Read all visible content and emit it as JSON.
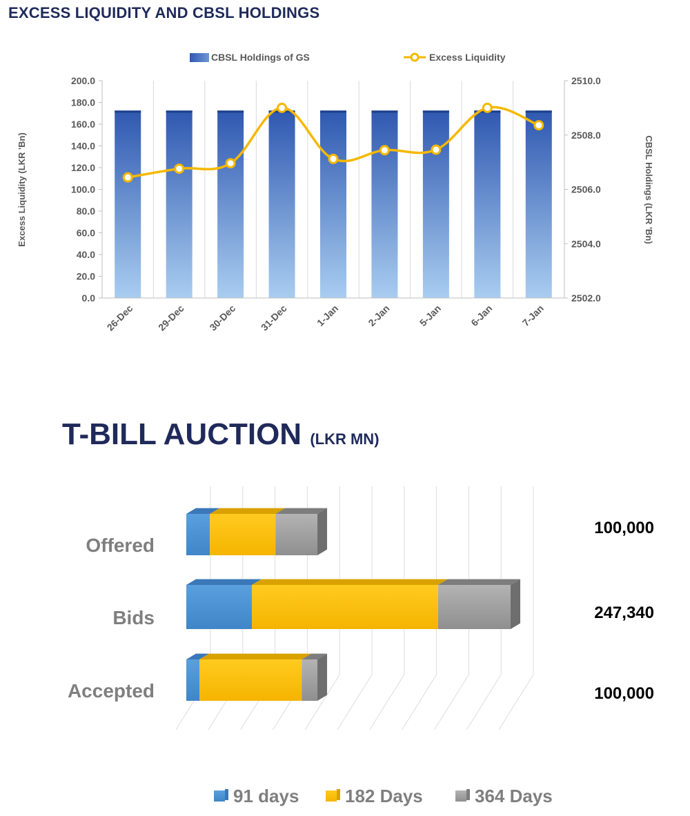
{
  "chart_data": [
    {
      "type": "bar",
      "title": "EXCESS LIQUIDITY AND CBSL HOLDINGS",
      "categories": [
        "26-Dec",
        "29-Dec",
        "30-Dec",
        "31-Dec",
        "1-Jan",
        "2-Jan",
        "5-Jan",
        "6-Jan",
        "7-Jan"
      ],
      "series": [
        {
          "name": "CBSL Holdings of GS",
          "type": "bar",
          "axis": "right",
          "values": [
            2508.9,
            2508.9,
            2508.9,
            2508.9,
            2508.9,
            2508.9,
            2508.9,
            2508.9,
            2508.9
          ]
        },
        {
          "name": "Excess Liquidity",
          "type": "line",
          "axis": "left",
          "values": [
            111.0,
            119.0,
            124.0,
            175.0,
            128.0,
            136.0,
            136.5,
            175.0,
            159.0
          ]
        }
      ],
      "ylabel": "Excess Liquidity (LKR 'Bn)",
      "y2label": "CBSL Holdings (LKR 'Bn)",
      "ylim": [
        0,
        200
      ],
      "y2lim": [
        2502,
        2510
      ],
      "yticks": [
        "200.0",
        "180.0",
        "160.0",
        "140.0",
        "120.0",
        "100.0",
        "80.0",
        "60.0",
        "40.0",
        "20.0",
        "0.0"
      ],
      "y2ticks": [
        "2510.0",
        "2508.0",
        "2506.0",
        "2504.0",
        "2502.0"
      ],
      "legend": "top-center",
      "colors": {
        "bar": "#3b63b5",
        "bar_light": "#a9cdf0",
        "line": "#f5b800"
      }
    },
    {
      "type": "bar",
      "orientation": "horizontal",
      "stacked": true,
      "title": "T-BILL AUCTION",
      "title_unit": "(LKR MN)",
      "categories": [
        "Offered",
        "Bids",
        "Accepted"
      ],
      "totals": [
        "100,000",
        "247,340",
        "100,000"
      ],
      "series": [
        {
          "name": "91 days",
          "values": [
            18000,
            50000,
            10000
          ]
        },
        {
          "name": "182 Days",
          "values": [
            50000,
            142000,
            78000
          ]
        },
        {
          "name": "364 Days",
          "values": [
            32000,
            55340,
            12000
          ]
        }
      ],
      "xlim": [
        0,
        260000
      ],
      "legend": "bottom",
      "colors": {
        "91 days": "#4a90d2",
        "182 Days": "#ffc20e",
        "364 Days": "#9e9e9e"
      }
    }
  ]
}
